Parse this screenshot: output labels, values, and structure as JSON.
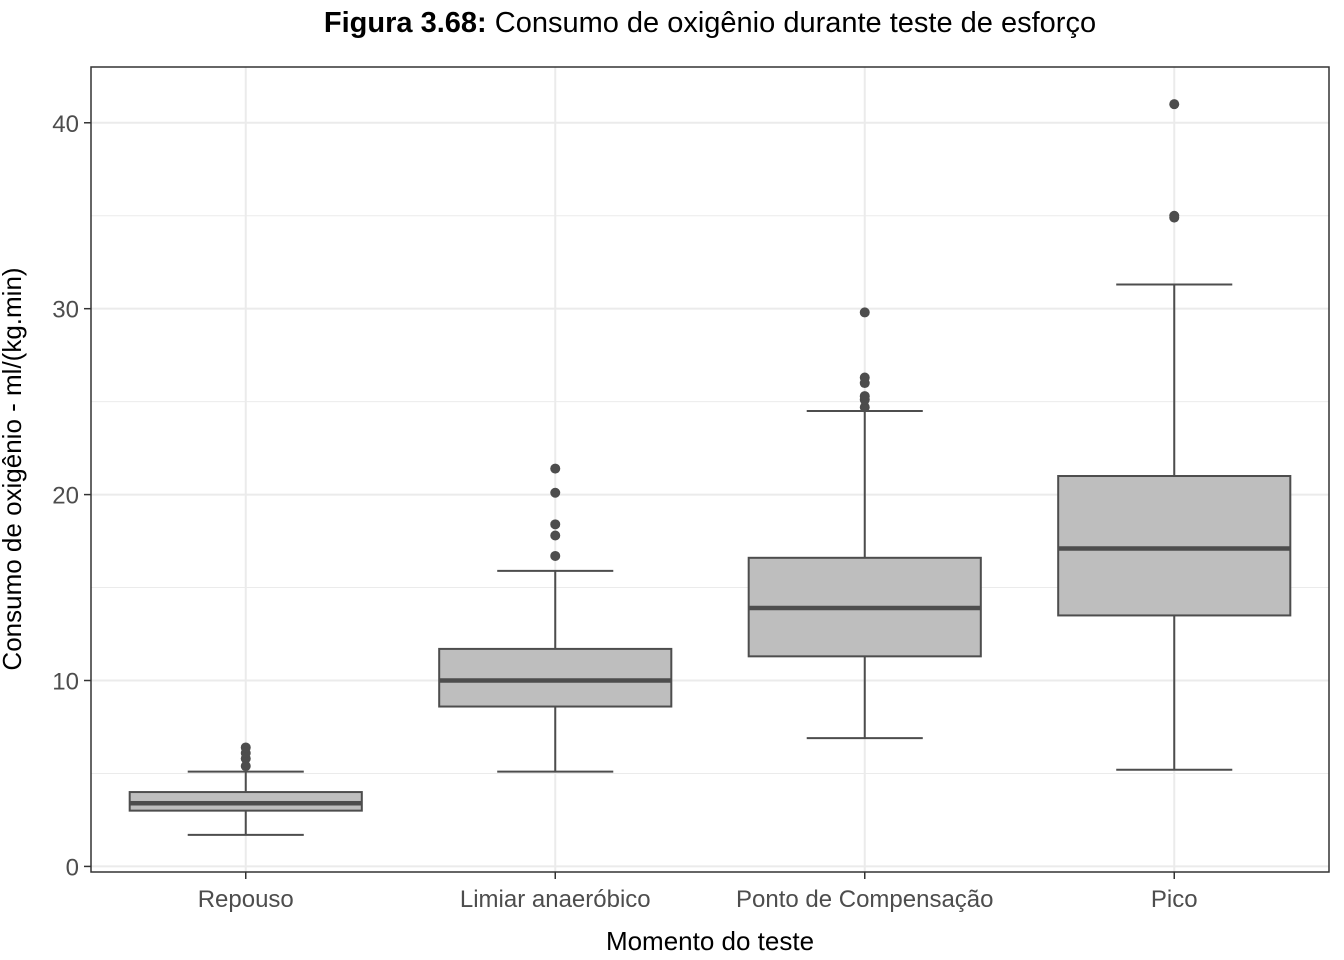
{
  "chart_data": {
    "type": "box",
    "title_bold": "Figura 3.68:",
    "title_rest": " Consumo de oxigênio durante teste de esforço",
    "xlabel": "Momento do teste",
    "ylabel": "Consumo de oxigênio - ml/(kg.min)",
    "ylim": [
      -0.3,
      43
    ],
    "yticks": [
      0,
      10,
      20,
      30,
      40
    ],
    "ytick_labels": [
      "0",
      "10",
      "20",
      "30",
      "40"
    ],
    "minor_yticks": [
      5,
      15,
      25,
      35
    ],
    "grid": true,
    "categories": [
      "Repouso",
      "Limiar anaeróbico",
      "Ponto de Compensação",
      "Pico"
    ],
    "boxes": [
      {
        "whisker_low": 1.7,
        "q1": 3.0,
        "median": 3.4,
        "q3": 4.0,
        "whisker_high": 5.1,
        "outliers": [
          5.4,
          5.8,
          6.1,
          6.4
        ]
      },
      {
        "whisker_low": 5.1,
        "q1": 8.6,
        "median": 10.0,
        "q3": 11.7,
        "whisker_high": 15.9,
        "outliers": [
          16.7,
          17.8,
          18.4,
          20.1,
          21.4
        ]
      },
      {
        "whisker_low": 6.9,
        "q1": 11.3,
        "median": 13.9,
        "q3": 16.6,
        "whisker_high": 24.5,
        "outliers": [
          24.7,
          25.1,
          25.3,
          26.0,
          26.3,
          29.8
        ]
      },
      {
        "whisker_low": 5.2,
        "q1": 13.5,
        "median": 17.1,
        "q3": 21.0,
        "whisker_high": 31.3,
        "outliers": [
          34.9,
          35.0,
          41.0
        ]
      }
    ],
    "colors": {
      "box_fill": "#bebebe",
      "box_stroke": "#4d4d4d",
      "outlier": "#4d4d4d",
      "grid": "#ebebeb",
      "panel_border": "#333333"
    }
  }
}
